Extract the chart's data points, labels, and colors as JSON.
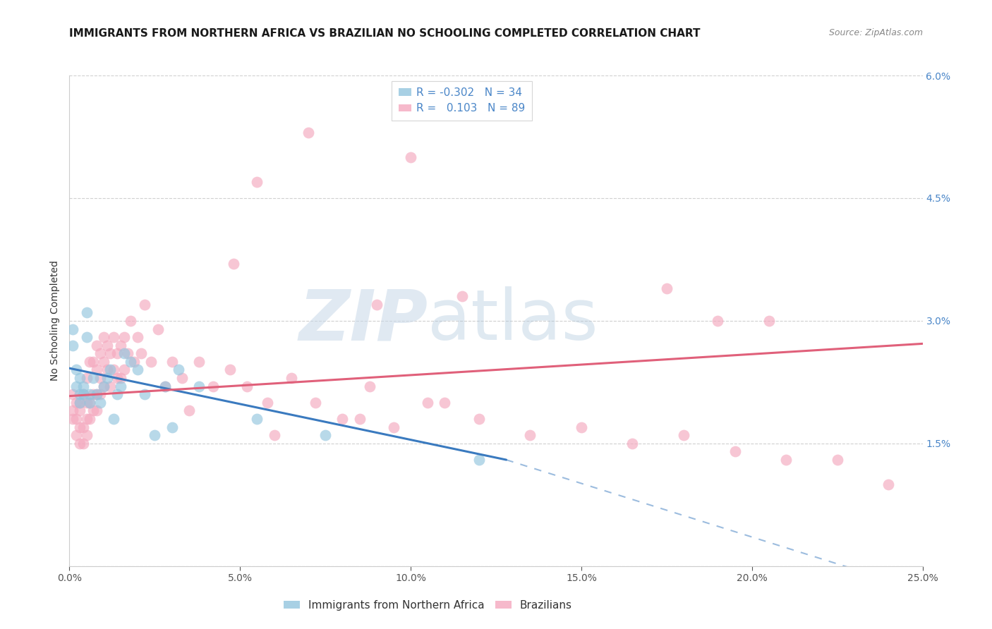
{
  "title": "IMMIGRANTS FROM NORTHERN AFRICA VS BRAZILIAN NO SCHOOLING COMPLETED CORRELATION CHART",
  "source": "Source: ZipAtlas.com",
  "ylabel": "No Schooling Completed",
  "xlim": [
    0.0,
    0.25
  ],
  "ylim": [
    0.0,
    0.06
  ],
  "xticks": [
    0.0,
    0.05,
    0.1,
    0.15,
    0.2,
    0.25
  ],
  "yticks": [
    0.0,
    0.015,
    0.03,
    0.045,
    0.06
  ],
  "legend_R1": "-0.302",
  "legend_N1": "34",
  "legend_R2": "0.103",
  "legend_N2": "89",
  "color_blue": "#92c5de",
  "color_blue_line": "#3a7abf",
  "color_pink": "#f4a8be",
  "color_pink_line": "#e0607a",
  "color_text_blue": "#4a86c8",
  "color_axis_label": "#333333",
  "scatter_blue_x": [
    0.001,
    0.001,
    0.002,
    0.002,
    0.003,
    0.003,
    0.003,
    0.004,
    0.004,
    0.005,
    0.005,
    0.006,
    0.006,
    0.007,
    0.008,
    0.009,
    0.01,
    0.011,
    0.012,
    0.013,
    0.014,
    0.015,
    0.016,
    0.018,
    0.02,
    0.022,
    0.025,
    0.028,
    0.03,
    0.032,
    0.038,
    0.055,
    0.075,
    0.12
  ],
  "scatter_blue_y": [
    0.027,
    0.029,
    0.022,
    0.024,
    0.02,
    0.021,
    0.023,
    0.021,
    0.022,
    0.028,
    0.031,
    0.02,
    0.021,
    0.023,
    0.021,
    0.02,
    0.022,
    0.023,
    0.024,
    0.018,
    0.021,
    0.022,
    0.026,
    0.025,
    0.024,
    0.021,
    0.016,
    0.022,
    0.017,
    0.024,
    0.022,
    0.018,
    0.016,
    0.013
  ],
  "scatter_pink_x": [
    0.001,
    0.001,
    0.001,
    0.002,
    0.002,
    0.002,
    0.003,
    0.003,
    0.003,
    0.003,
    0.004,
    0.004,
    0.004,
    0.005,
    0.005,
    0.005,
    0.005,
    0.006,
    0.006,
    0.006,
    0.007,
    0.007,
    0.007,
    0.008,
    0.008,
    0.008,
    0.008,
    0.009,
    0.009,
    0.009,
    0.01,
    0.01,
    0.01,
    0.011,
    0.011,
    0.012,
    0.012,
    0.013,
    0.013,
    0.014,
    0.014,
    0.015,
    0.015,
    0.016,
    0.016,
    0.017,
    0.018,
    0.019,
    0.02,
    0.021,
    0.022,
    0.024,
    0.026,
    0.028,
    0.03,
    0.033,
    0.038,
    0.042,
    0.047,
    0.052,
    0.058,
    0.065,
    0.072,
    0.08,
    0.088,
    0.095,
    0.105,
    0.12,
    0.135,
    0.15,
    0.165,
    0.18,
    0.195,
    0.21,
    0.225,
    0.24,
    0.055,
    0.07,
    0.09,
    0.175,
    0.19,
    0.1,
    0.115,
    0.205,
    0.048,
    0.035,
    0.06,
    0.085,
    0.11
  ],
  "scatter_pink_y": [
    0.018,
    0.019,
    0.021,
    0.016,
    0.018,
    0.02,
    0.015,
    0.017,
    0.019,
    0.02,
    0.015,
    0.017,
    0.021,
    0.016,
    0.018,
    0.02,
    0.023,
    0.018,
    0.02,
    0.025,
    0.019,
    0.021,
    0.025,
    0.019,
    0.021,
    0.024,
    0.027,
    0.021,
    0.023,
    0.026,
    0.022,
    0.025,
    0.028,
    0.024,
    0.027,
    0.022,
    0.026,
    0.024,
    0.028,
    0.023,
    0.026,
    0.023,
    0.027,
    0.024,
    0.028,
    0.026,
    0.03,
    0.025,
    0.028,
    0.026,
    0.032,
    0.025,
    0.029,
    0.022,
    0.025,
    0.023,
    0.025,
    0.022,
    0.024,
    0.022,
    0.02,
    0.023,
    0.02,
    0.018,
    0.022,
    0.017,
    0.02,
    0.018,
    0.016,
    0.017,
    0.015,
    0.016,
    0.014,
    0.013,
    0.013,
    0.01,
    0.047,
    0.053,
    0.032,
    0.034,
    0.03,
    0.05,
    0.033,
    0.03,
    0.037,
    0.019,
    0.016,
    0.018,
    0.02
  ],
  "blue_line_x_start": 0.0,
  "blue_line_x_solid_end": 0.128,
  "blue_line_x_dash_end": 0.25,
  "blue_line_y_start": 0.0242,
  "blue_line_y_solid_end": 0.013,
  "blue_line_y_dash_end": -0.003,
  "pink_line_x_start": 0.0,
  "pink_line_x_end": 0.25,
  "pink_line_y_start": 0.0208,
  "pink_line_y_end": 0.0272,
  "background_color": "#ffffff",
  "grid_color": "#d0d0d0",
  "watermark_part1": "ZIP",
  "watermark_part2": "atlas",
  "title_fontsize": 11,
  "axis_label_fontsize": 10,
  "tick_fontsize": 10,
  "legend_fontsize": 11
}
